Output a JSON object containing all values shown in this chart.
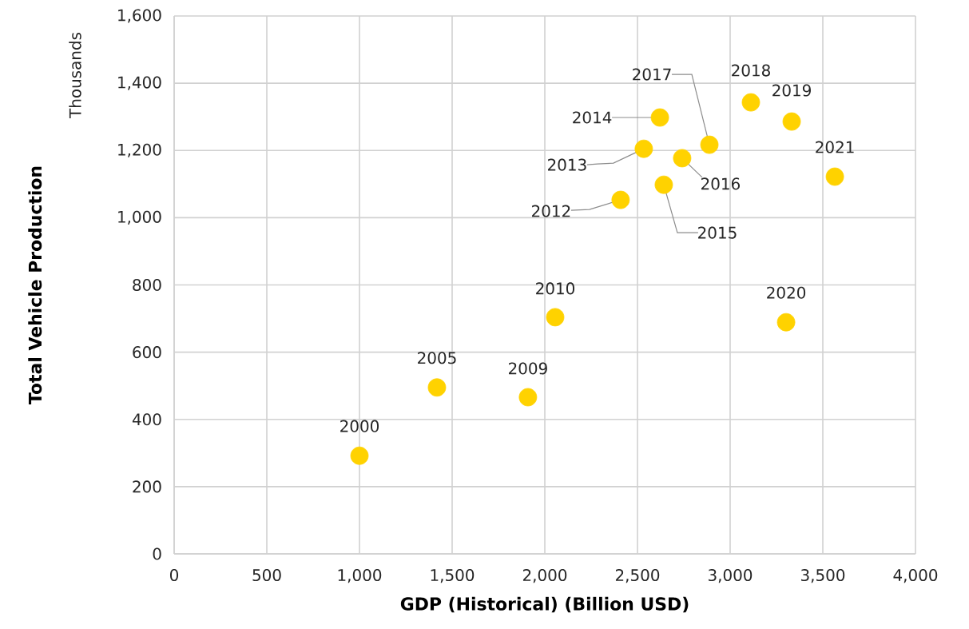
{
  "chart_data": {
    "type": "scatter",
    "xlabel": "GDP (Historical) (Billion USD)",
    "ylabel": "Total Vehicle Production",
    "x": [
      1000,
      1418,
      1909,
      2056,
      2409,
      2534,
      2621,
      2642,
      2741,
      2888,
      3112,
      3332,
      3302,
      3565
    ],
    "series": [
      {
        "color": "#ffd200",
        "values": [
          292,
          495,
          466,
          704,
          1053,
          1205,
          1298,
          1098,
          1177,
          1217,
          1343,
          1286,
          689,
          1122
        ]
      }
    ],
    "grid": true,
    "xlim": [
      0,
      4000
    ],
    "ylim": [
      0,
      1600
    ],
    "xticks": [
      0,
      500,
      {
        "value": 1000,
        "label": "1,000"
      },
      {
        "value": 1500,
        "label": "1,500"
      },
      {
        "value": 2000,
        "label": "2,000"
      },
      {
        "value": 2500,
        "label": "2,500"
      },
      {
        "value": 3000,
        "label": "3,000"
      },
      {
        "value": 3500,
        "label": "3,500"
      },
      {
        "value": 4000,
        "label": "4,000"
      }
    ],
    "yticks": [
      0,
      200,
      400,
      600,
      800,
      {
        "value": 1000,
        "label": "1,000"
      },
      {
        "value": 1200,
        "label": "1,200"
      },
      {
        "value": 1400,
        "label": "1,400"
      },
      {
        "value": 1600,
        "label": "1,600"
      }
    ],
    "annotations": [
      "Thousands",
      {
        "text": "2000",
        "x": 1000,
        "y": 292
      },
      {
        "text": "2005",
        "x": 1418,
        "y": 495
      },
      {
        "text": "2009",
        "x": 1909,
        "y": 466
      },
      {
        "text": "2010",
        "x": 2056,
        "y": 704
      },
      {
        "text": "2012",
        "x": 2409,
        "y": 1053
      },
      {
        "text": "2013",
        "x": 2534,
        "y": 1205
      },
      {
        "text": "2014",
        "x": 2621,
        "y": 1298
      },
      {
        "text": "2015",
        "x": 2642,
        "y": 1098
      },
      {
        "text": "2016",
        "x": 2741,
        "y": 1177
      },
      {
        "text": "2017",
        "x": 2888,
        "y": 1217
      },
      {
        "text": "2018",
        "x": 3112,
        "y": 1343
      },
      {
        "text": "2019",
        "x": 3332,
        "y": 1286
      },
      {
        "text": "2020",
        "x": 3302,
        "y": 689
      },
      {
        "text": "2021",
        "x": 3565,
        "y": 1122
      }
    ]
  }
}
